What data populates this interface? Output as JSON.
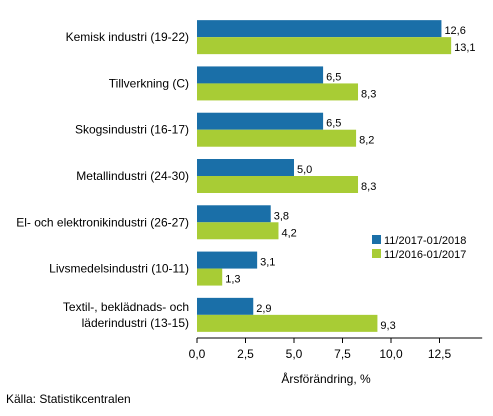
{
  "chart_data": {
    "type": "bar",
    "orientation": "horizontal",
    "categories": [
      "Kemisk industri (19-22)",
      "Tillverkning (C)",
      "Skogsindustri (16-17)",
      "Metallindustri (24-30)",
      "El- och elektronikindustri (26-27)",
      "Livsmedelsindustri (10-11)",
      [
        "Textil-, beklädnads- och",
        "läderindustri (13-15)"
      ]
    ],
    "series": [
      {
        "name": "11/2017-01/2018",
        "color": "#1a6fa8",
        "values": [
          12.6,
          6.5,
          6.5,
          5.0,
          3.8,
          3.1,
          2.9
        ],
        "labels": [
          "12,6",
          "6,5",
          "6,5",
          "5,0",
          "3,8",
          "3,1",
          "2,9"
        ]
      },
      {
        "name": "11/2016-01/2017",
        "color": "#a8cc35",
        "values": [
          13.1,
          8.3,
          8.2,
          8.3,
          4.2,
          1.3,
          9.3
        ],
        "labels": [
          "13,1",
          "8,3",
          "8,2",
          "8,3",
          "4,2",
          "1,3",
          "9,3"
        ]
      }
    ],
    "xlabel": "Årsförändring, %",
    "xlim": [
      0,
      14.7
    ],
    "xticks": [
      0,
      2.5,
      5.0,
      7.5,
      10.0,
      12.5
    ],
    "xtick_labels": [
      "0,0",
      "2,5",
      "5,0",
      "7,5",
      "10,0",
      "12,5"
    ],
    "grid": false,
    "legend_position": "right"
  },
  "source": "Källa: Statistikcentralen"
}
